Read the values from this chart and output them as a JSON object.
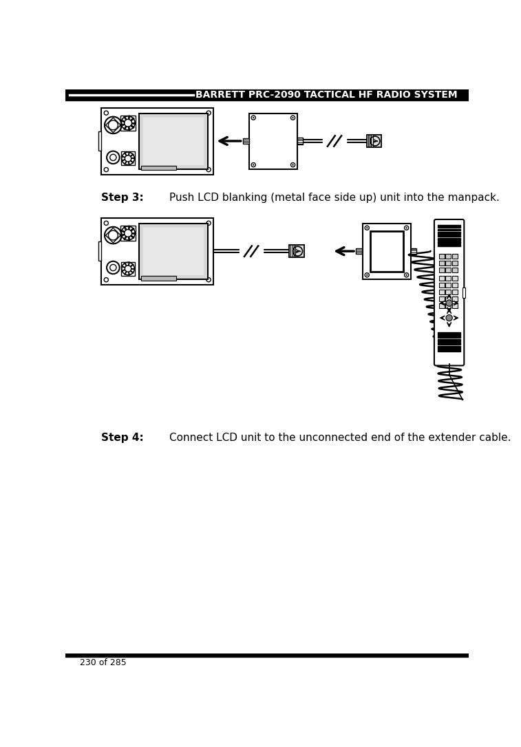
{
  "header_text": "BARRETT PRC-2090 TACTICAL HF RADIO SYSTEM",
  "header_bg": "#000000",
  "header_text_color": "#ffffff",
  "footer_text": "230 of 285",
  "footer_line_color": "#000000",
  "step3_label": "Step 3:",
  "step3_text": "Push LCD blanking (metal face side up) unit into the manpack.",
  "step4_label": "Step 4:",
  "step4_text": "Connect LCD unit to the unconnected end of the extender cable.",
  "bg_color": "#ffffff",
  "text_color": "#000000",
  "lc": "#000000"
}
